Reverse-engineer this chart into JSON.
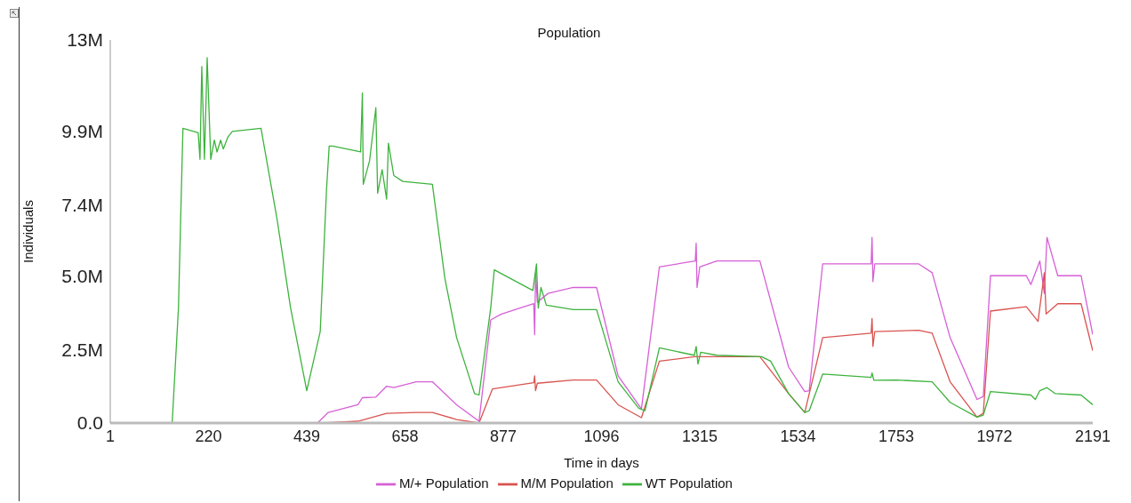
{
  "chart_data": {
    "type": "line",
    "title": "Population",
    "xlabel": "Time in days",
    "ylabel": "Individuals",
    "xlim": [
      1,
      2191
    ],
    "xticks": [
      1,
      220,
      439,
      658,
      877,
      1096,
      1315,
      1534,
      1753,
      1972,
      2191
    ],
    "ylim": [
      0,
      13
    ],
    "yticks": [
      {
        "value": 0,
        "label": "0.0"
      },
      {
        "value": 2.5,
        "label": "2.5M"
      },
      {
        "value": 5.0,
        "label": "5.0M"
      },
      {
        "value": 7.4,
        "label": "7.4M"
      },
      {
        "value": 9.9,
        "label": "9.9M"
      },
      {
        "value": 13,
        "label": "13M"
      }
    ],
    "grid": false,
    "legend": "bottom",
    "marker": "none",
    "line_style": "solid",
    "series": [
      {
        "name": "M/+ Population",
        "color": "#d65fd6",
        "x": [
          1,
          463,
          487,
          553,
          563,
          593,
          617,
          633,
          683,
          719,
          773,
          823,
          849,
          873,
          945,
          947,
          949,
          953,
          977,
          1033,
          1085,
          1133,
          1185,
          1225,
          1305,
          1307,
          1309,
          1315,
          1353,
          1449,
          1513,
          1549,
          1559,
          1589,
          1697,
          1699,
          1701,
          1705,
          1803,
          1833,
          1873,
          1933,
          1947,
          1963,
          2043,
          2053,
          2073,
          2083,
          2089,
          2113,
          2165,
          2191
        ],
        "values": [
          0,
          0,
          0.36,
          0.62,
          0.86,
          0.88,
          1.25,
          1.2,
          1.4,
          1.4,
          0.62,
          0.06,
          3.5,
          3.7,
          4.05,
          3.0,
          5.1,
          4.1,
          4.4,
          4.6,
          4.6,
          1.6,
          0.48,
          5.3,
          5.5,
          6.1,
          4.6,
          5.3,
          5.5,
          5.5,
          1.9,
          1.07,
          1.1,
          5.4,
          5.4,
          6.3,
          4.8,
          5.4,
          5.4,
          5.1,
          2.9,
          0.8,
          0.9,
          5.0,
          5.0,
          4.7,
          5.5,
          4.4,
          6.3,
          5.0,
          5.0,
          3.0
        ]
      },
      {
        "name": "M/M Population",
        "color": "#d9534f",
        "x": [
          1,
          473,
          553,
          617,
          683,
          719,
          773,
          823,
          853,
          945,
          947,
          949,
          953,
          1033,
          1085,
          1133,
          1185,
          1225,
          1303,
          1449,
          1513,
          1549,
          1589,
          1697,
          1699,
          1701,
          1705,
          1803,
          1833,
          1873,
          1933,
          1947,
          1963,
          2043,
          2069,
          2083,
          2087,
          2113,
          2165,
          2191
        ],
        "values": [
          0,
          0,
          0.06,
          0.33,
          0.36,
          0.36,
          0.12,
          0,
          1.16,
          1.37,
          1.6,
          1.1,
          1.35,
          1.46,
          1.46,
          0.62,
          0.18,
          2.1,
          2.25,
          2.25,
          1.0,
          0.36,
          2.9,
          3.05,
          3.55,
          2.6,
          3.1,
          3.15,
          3.05,
          1.4,
          0.2,
          0.33,
          3.8,
          3.95,
          3.45,
          5.1,
          3.7,
          4.05,
          4.05,
          2.45
        ]
      },
      {
        "name": "WT Population",
        "color": "#3db33d",
        "x": [
          1,
          139,
          153,
          163,
          197,
          201,
          205,
          211,
          217,
          225,
          233,
          239,
          247,
          253,
          263,
          273,
          337,
          373,
          403,
          439,
          469,
          483,
          489,
          497,
          559,
          563,
          565,
          579,
          593,
          597,
          607,
          617,
          621,
          633,
          653,
          719,
          747,
          773,
          813,
          823,
          849,
          857,
          943,
          951,
          955,
          961,
          973,
          1033,
          1085,
          1133,
          1179,
          1193,
          1225,
          1303,
          1307,
          1311,
          1317,
          1353,
          1453,
          1473,
          1513,
          1549,
          1559,
          1589,
          1697,
          1699,
          1703,
          1753,
          1833,
          1873,
          1933,
          1947,
          1963,
          2053,
          2063,
          2073,
          2089,
          2107,
          2165,
          2191
        ],
        "values": [
          0,
          0,
          3.9,
          10.0,
          9.85,
          8.95,
          12.1,
          8.95,
          12.4,
          8.95,
          9.6,
          9.2,
          9.6,
          9.3,
          9.7,
          9.9,
          10.0,
          6.9,
          3.9,
          1.1,
          3.1,
          7.9,
          9.4,
          9.4,
          9.2,
          11.2,
          8.1,
          8.9,
          10.7,
          7.8,
          8.6,
          7.6,
          9.5,
          8.4,
          8.2,
          8.1,
          4.9,
          2.9,
          1.0,
          0.95,
          3.9,
          5.2,
          4.5,
          5.4,
          3.9,
          4.6,
          4.0,
          3.85,
          3.85,
          1.4,
          0.5,
          0.42,
          2.55,
          2.3,
          2.6,
          2.0,
          2.4,
          2.3,
          2.25,
          2.1,
          1.0,
          0.36,
          0.42,
          1.66,
          1.55,
          1.7,
          1.45,
          1.46,
          1.4,
          0.7,
          0.2,
          0.27,
          1.07,
          0.95,
          0.8,
          1.1,
          1.2,
          1.0,
          0.95,
          0.62
        ]
      }
    ]
  }
}
